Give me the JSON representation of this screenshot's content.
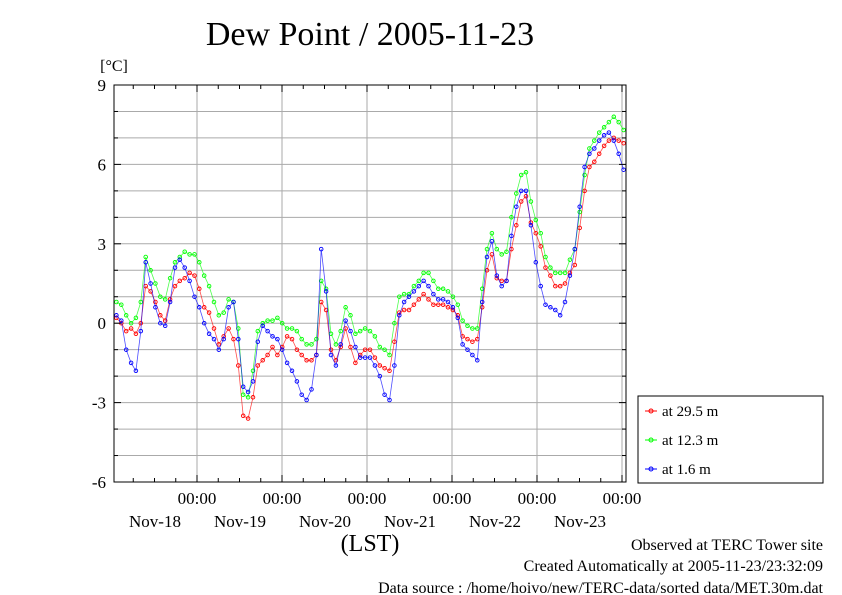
{
  "chart_data": {
    "type": "line",
    "title": "Dew Point / 2005-11-23",
    "y_unit": "[°C]",
    "xlabel": "(LST)",
    "ylim": [
      -6,
      9
    ],
    "y_ticks": [
      "9",
      "6",
      "3",
      "0",
      "-3",
      "-6"
    ],
    "x_ticks": [
      {
        "time": "00:00",
        "date": "Nov-18"
      },
      {
        "time": "00:00",
        "date": "Nov-19"
      },
      {
        "time": "00:00",
        "date": "Nov-20"
      },
      {
        "time": "00:00",
        "date": "Nov-21"
      },
      {
        "time": "00:00",
        "date": "Nov-22"
      },
      {
        "time": "00:00",
        "date": "Nov-23"
      }
    ],
    "grid": true,
    "legend_position": "right-bottom",
    "series": [
      {
        "name": "at 29.5 m",
        "color": "#ff0000",
        "values": [
          0.2,
          0.0,
          -0.3,
          -0.2,
          -0.4,
          0.0,
          1.4,
          1.2,
          0.8,
          0.3,
          0.1,
          0.9,
          1.4,
          1.6,
          1.7,
          1.9,
          1.8,
          1.3,
          0.6,
          0.4,
          -0.2,
          -0.8,
          -0.5,
          -0.2,
          -0.6,
          -1.6,
          -3.5,
          -3.6,
          -2.8,
          -1.6,
          -1.4,
          -1.2,
          -0.9,
          -1.2,
          -0.9,
          -0.5,
          -0.6,
          -1.0,
          -1.2,
          -1.4,
          -1.4,
          -1.2,
          0.8,
          0.5,
          -1.0,
          -1.4,
          -0.9,
          -0.2,
          -0.9,
          -1.5,
          -1.2,
          -1.0,
          -1.0,
          -1.3,
          -1.6,
          -1.7,
          -1.8,
          -0.7,
          0.4,
          0.5,
          0.5,
          0.7,
          0.9,
          1.1,
          0.9,
          0.7,
          0.7,
          0.7,
          0.6,
          0.5,
          0.3,
          -0.5,
          -0.6,
          -0.7,
          -0.6,
          0.6,
          2.0,
          2.6,
          1.7,
          1.6,
          1.6,
          2.8,
          3.7,
          4.6,
          4.8,
          3.8,
          3.4,
          2.9,
          2.1,
          1.8,
          1.4,
          1.4,
          1.5,
          1.9,
          2.2,
          3.6,
          5.0,
          5.9,
          6.1,
          6.4,
          6.7,
          6.9,
          7.0,
          6.9,
          6.8
        ]
      },
      {
        "name": "at 12.3 m",
        "color": "#00ff00",
        "values": [
          0.8,
          0.7,
          0.3,
          0.0,
          0.2,
          0.8,
          2.5,
          2.0,
          1.5,
          1.0,
          0.9,
          1.7,
          2.3,
          2.5,
          2.7,
          2.6,
          2.6,
          2.3,
          1.8,
          1.4,
          0.8,
          0.3,
          0.4,
          0.9,
          0.8,
          -0.2,
          -2.7,
          -2.8,
          -1.8,
          -0.3,
          0.0,
          0.1,
          0.1,
          0.2,
          0.0,
          -0.2,
          -0.2,
          -0.3,
          -0.6,
          -0.8,
          -0.8,
          -0.6,
          1.6,
          1.3,
          -0.4,
          -0.8,
          -0.3,
          0.6,
          0.3,
          -0.4,
          -0.3,
          -0.2,
          -0.3,
          -0.5,
          -0.9,
          -1.0,
          -1.2,
          0.0,
          1.0,
          1.1,
          1.1,
          1.4,
          1.6,
          1.9,
          1.9,
          1.6,
          1.3,
          1.3,
          1.2,
          1.0,
          0.7,
          0.1,
          -0.1,
          -0.2,
          -0.2,
          1.3,
          2.8,
          3.4,
          2.8,
          2.6,
          2.7,
          4.0,
          4.9,
          5.6,
          5.7,
          4.6,
          3.9,
          3.4,
          2.5,
          2.1,
          1.9,
          1.9,
          1.9,
          2.4,
          2.8,
          4.2,
          5.6,
          6.6,
          6.9,
          7.2,
          7.4,
          7.6,
          7.8,
          7.6,
          7.3
        ]
      },
      {
        "name": "at 1.6 m",
        "color": "#0000ff",
        "values": [
          0.3,
          0.1,
          -1.0,
          -1.5,
          -1.8,
          -0.3,
          2.3,
          1.5,
          0.6,
          0.0,
          -0.1,
          0.8,
          2.1,
          2.4,
          2.1,
          1.6,
          1.0,
          0.6,
          0.0,
          -0.4,
          -0.6,
          -1.0,
          -0.6,
          0.6,
          0.8,
          -0.6,
          -2.4,
          -2.6,
          -2.2,
          -0.7,
          -0.1,
          -0.3,
          -0.5,
          -0.6,
          -1.0,
          -1.5,
          -1.8,
          -2.2,
          -2.7,
          -2.9,
          -2.5,
          -1.2,
          2.8,
          1.2,
          -1.2,
          -1.6,
          -0.8,
          0.1,
          -0.3,
          -0.9,
          -1.3,
          -1.3,
          -1.3,
          -1.6,
          -2.0,
          -2.7,
          -2.9,
          -1.6,
          0.3,
          0.8,
          1.0,
          1.2,
          1.4,
          1.6,
          1.4,
          1.1,
          0.9,
          0.9,
          0.8,
          0.6,
          0.2,
          -0.8,
          -1.0,
          -1.2,
          -1.4,
          0.8,
          2.5,
          3.1,
          1.8,
          1.4,
          1.6,
          3.3,
          4.4,
          5.0,
          5.0,
          3.7,
          2.3,
          1.4,
          0.7,
          0.6,
          0.5,
          0.3,
          0.8,
          1.8,
          2.8,
          4.4,
          5.9,
          6.4,
          6.6,
          6.9,
          7.1,
          7.2,
          6.9,
          6.4,
          5.8
        ]
      }
    ]
  },
  "notes": {
    "observed": "Observed at TERC Tower site",
    "created": "Created Automatically at 2005-11-23/23:32:09",
    "source": "Data source : /home/hoivo/new/TERC-data/sorted data/MET.30m.dat"
  }
}
